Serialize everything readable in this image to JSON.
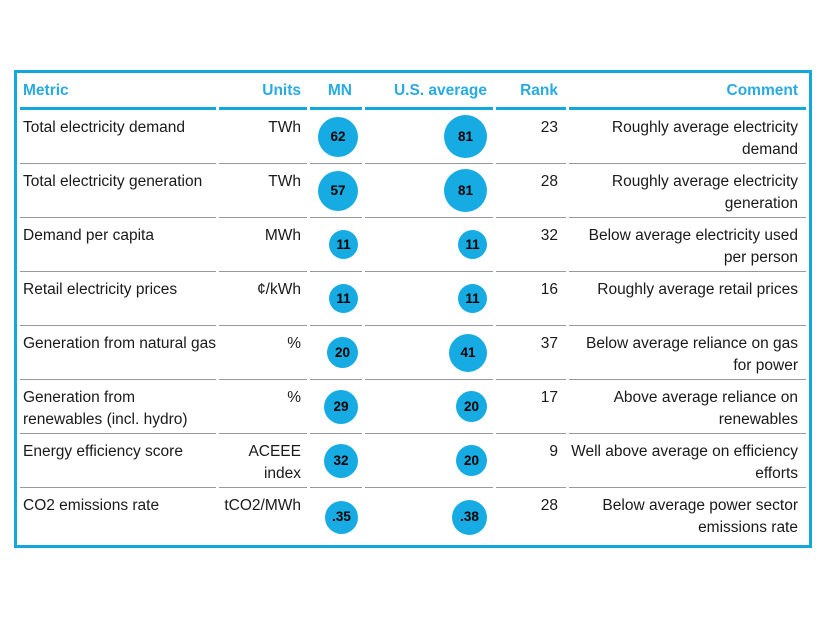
{
  "chart_data": {
    "type": "table",
    "title": "",
    "columns": [
      "Metric",
      "Units",
      "MN",
      "U.S. average",
      "Rank",
      "Comment"
    ],
    "headers": {
      "metric": "Metric",
      "units": "Units",
      "mn": "MN",
      "us": "U.S. average",
      "rank": "Rank",
      "comment": "Comment"
    },
    "bubble_note": "blue bubble diameter (d, px) encodes the magnitude of the value (v)",
    "rows": [
      {
        "metric": "Total electricity demand",
        "units": "TWh",
        "mn": {
          "v": "62",
          "d": 40
        },
        "us": {
          "v": "81",
          "d": 43
        },
        "rank": "23",
        "comment": "Roughly average electricity demand"
      },
      {
        "metric": "Total electricity generation",
        "units": "TWh",
        "mn": {
          "v": "57",
          "d": 40
        },
        "us": {
          "v": "81",
          "d": 43
        },
        "rank": "28",
        "comment": "Roughly average electricity generation"
      },
      {
        "metric": "Demand per capita",
        "units": "MWh",
        "mn": {
          "v": "11",
          "d": 29
        },
        "us": {
          "v": "11",
          "d": 29
        },
        "rank": "32",
        "comment": "Below average electricity used per person"
      },
      {
        "metric": "Retail electricity prices",
        "units": "¢/kWh",
        "mn": {
          "v": "11",
          "d": 29
        },
        "us": {
          "v": "11",
          "d": 29
        },
        "rank": "16",
        "comment": "Roughly average retail prices"
      },
      {
        "metric": "Generation from natural gas",
        "units": "%",
        "mn": {
          "v": "20",
          "d": 31
        },
        "us": {
          "v": "41",
          "d": 38
        },
        "rank": "37",
        "comment": "Below average reliance on gas for power"
      },
      {
        "metric": "Generation from renewables (incl. hydro)",
        "units": "%",
        "mn": {
          "v": "29",
          "d": 34
        },
        "us": {
          "v": "20",
          "d": 31
        },
        "rank": "17",
        "comment": "Above average reliance on renewables"
      },
      {
        "metric": "Energy efficiency score",
        "units": "ACEEE index",
        "mn": {
          "v": "32",
          "d": 34
        },
        "us": {
          "v": "20",
          "d": 31
        },
        "rank": "9",
        "comment": "Well above average on efficiency efforts"
      },
      {
        "metric": "CO2 emissions rate",
        "units": "tCO2/MWh",
        "mn": {
          "v": ".35",
          "d": 33
        },
        "us": {
          "v": ".38",
          "d": 35
        },
        "rank": "28",
        "comment": "Below average power sector emissions rate"
      }
    ],
    "colors": {
      "bubble": "#16ACE3",
      "border": "#12A7DE",
      "header_text": "#29ABE2",
      "separator": "#999999",
      "text": "#1A1A1A"
    }
  }
}
